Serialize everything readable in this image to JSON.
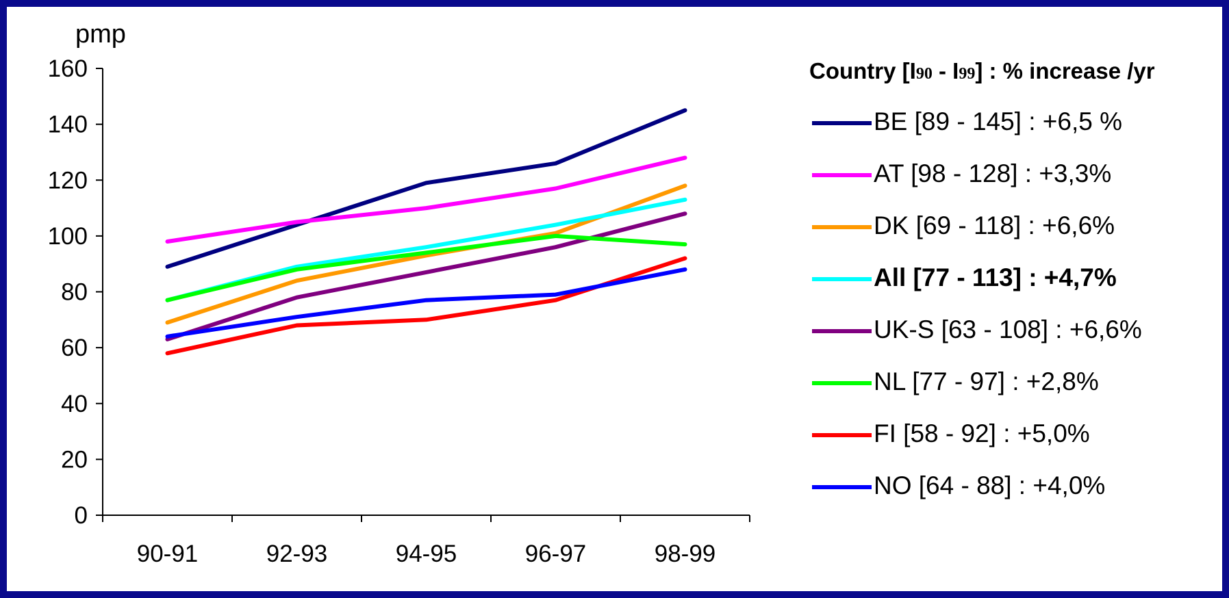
{
  "chart_data": {
    "type": "line",
    "ylabel": "pmp",
    "categories": [
      "90-91",
      "92-93",
      "94-95",
      "96-97",
      "98-99"
    ],
    "ylim": [
      0,
      160
    ],
    "yticks": [
      0,
      20,
      40,
      60,
      80,
      100,
      120,
      140,
      160
    ],
    "grid": false,
    "legend_position": "right",
    "legend_title": {
      "prefix": "Country [I",
      "sub1": "90",
      "middle": " - I",
      "sub2": "99",
      "suffix": "] : % increase /yr"
    },
    "series": [
      {
        "name": "BE [89 - 145] : +6,5 %",
        "color": "#000080",
        "bold": false,
        "values": [
          89,
          104,
          119,
          126,
          145
        ]
      },
      {
        "name": "AT [98 - 128] : +3,3%",
        "color": "#ff00ff",
        "bold": false,
        "values": [
          98,
          105,
          110,
          117,
          128
        ]
      },
      {
        "name": "DK [69 - 118] : +6,6%",
        "color": "#ff9900",
        "bold": false,
        "values": [
          69,
          84,
          93,
          101,
          118
        ]
      },
      {
        "name": "All [77 - 113] : +4,7%",
        "color": "#00ffff",
        "bold": true,
        "values": [
          77,
          89,
          96,
          104,
          113
        ]
      },
      {
        "name": "UK-S [63 - 108] : +6,6%",
        "color": "#800080",
        "bold": false,
        "values": [
          63,
          78,
          87,
          96,
          108
        ]
      },
      {
        "name": "NL [77 - 97] : +2,8%",
        "color": "#00ff00",
        "bold": false,
        "values": [
          77,
          88,
          94,
          100,
          97
        ]
      },
      {
        "name": "FI  [58 - 92] : +5,0%",
        "color": "#ff0000",
        "bold": false,
        "values": [
          58,
          68,
          70,
          77,
          92
        ]
      },
      {
        "name": "NO [64 - 88] : +4,0%",
        "color": "#0000ff",
        "bold": false,
        "values": [
          64,
          71,
          77,
          79,
          88
        ]
      }
    ]
  }
}
